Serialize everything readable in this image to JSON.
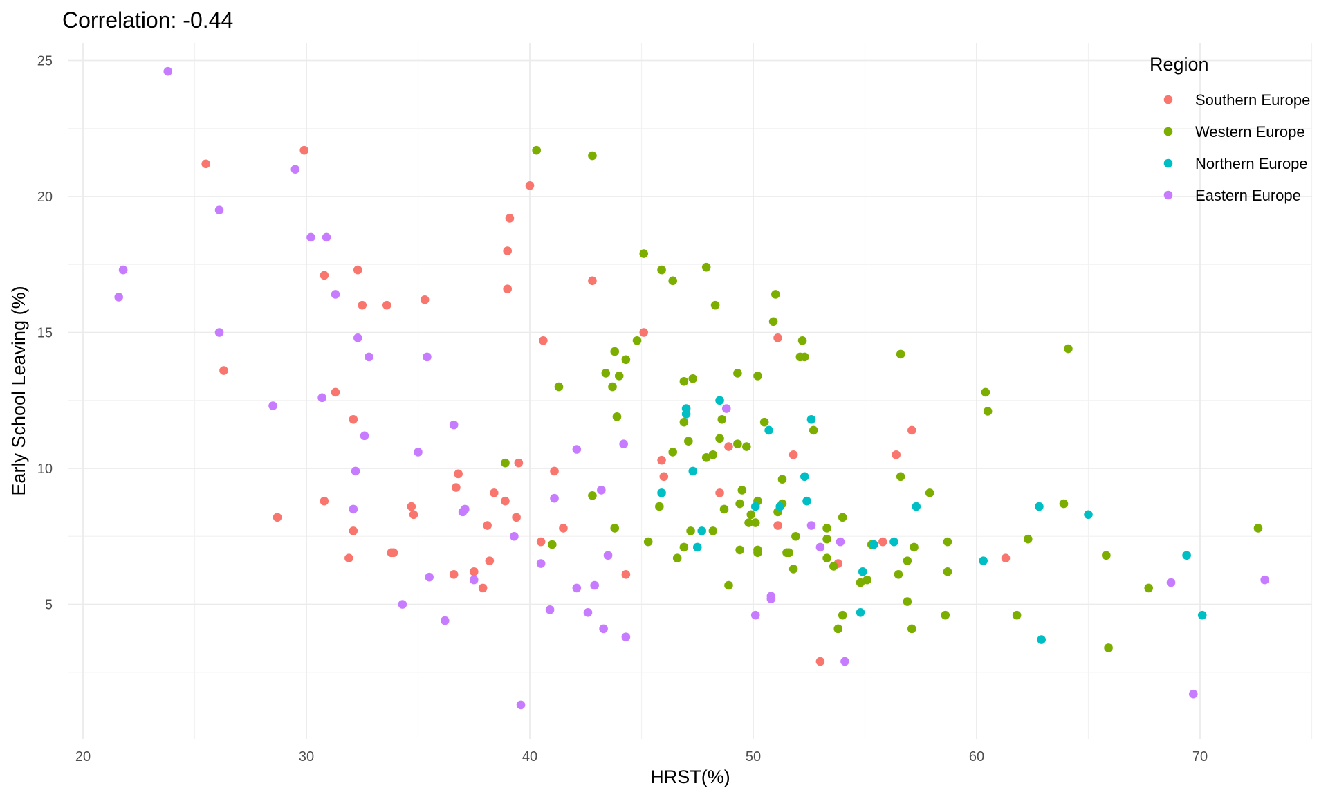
{
  "chart_data": {
    "type": "scatter",
    "title": "Correlation:  -0.44",
    "xlabel": "HRST(%)",
    "ylabel": "Early School Leaving (%)",
    "xlim": [
      18.5,
      75.5
    ],
    "ylim": [
      0.5,
      25.8
    ],
    "x_ticks": [
      20,
      30,
      40,
      50,
      60,
      70
    ],
    "y_ticks": [
      5,
      10,
      15,
      20,
      25
    ],
    "grid": true,
    "legend": {
      "title": "Region",
      "position": "top-right"
    },
    "series": [
      {
        "name": "Southern Europe",
        "color": "#F8766D",
        "points": [
          [
            25.5,
            21.2
          ],
          [
            29.9,
            21.7
          ],
          [
            26.3,
            13.6
          ],
          [
            28.7,
            8.2
          ],
          [
            30.8,
            17.1
          ],
          [
            31.3,
            12.8
          ],
          [
            30.8,
            8.8
          ],
          [
            32.3,
            17.3
          ],
          [
            32.1,
            11.8
          ],
          [
            32.1,
            7.7
          ],
          [
            31.9,
            6.7
          ],
          [
            32.5,
            16.0
          ],
          [
            33.6,
            16.0
          ],
          [
            33.8,
            6.9
          ],
          [
            33.9,
            6.9
          ],
          [
            34.7,
            8.6
          ],
          [
            34.8,
            8.3
          ],
          [
            35.3,
            16.2
          ],
          [
            36.6,
            6.1
          ],
          [
            36.7,
            9.3
          ],
          [
            36.8,
            9.8
          ],
          [
            37.5,
            6.2
          ],
          [
            37.9,
            5.6
          ],
          [
            38.1,
            7.9
          ],
          [
            38.2,
            6.6
          ],
          [
            38.4,
            9.1
          ],
          [
            38.9,
            8.8
          ],
          [
            39.0,
            18.0
          ],
          [
            39.0,
            16.6
          ],
          [
            39.1,
            19.2
          ],
          [
            39.4,
            8.2
          ],
          [
            39.5,
            10.2
          ],
          [
            40.0,
            20.4
          ],
          [
            40.5,
            7.3
          ],
          [
            40.6,
            14.7
          ],
          [
            41.1,
            9.9
          ],
          [
            41.5,
            7.8
          ],
          [
            42.8,
            16.9
          ],
          [
            44.3,
            6.1
          ],
          [
            45.1,
            15.0
          ],
          [
            45.9,
            10.3
          ],
          [
            46.0,
            9.7
          ],
          [
            48.5,
            9.1
          ],
          [
            48.9,
            10.8
          ],
          [
            51.1,
            14.8
          ],
          [
            51.1,
            7.9
          ],
          [
            51.8,
            10.5
          ],
          [
            53.0,
            2.9
          ],
          [
            53.8,
            6.5
          ],
          [
            55.8,
            7.3
          ],
          [
            56.4,
            10.5
          ],
          [
            57.1,
            11.4
          ],
          [
            61.3,
            6.7
          ]
        ]
      },
      {
        "name": "Western Europe",
        "color": "#7CAE00",
        "points": [
          [
            38.9,
            10.2
          ],
          [
            40.3,
            21.7
          ],
          [
            41.0,
            7.2
          ],
          [
            41.3,
            13.0
          ],
          [
            42.8,
            21.5
          ],
          [
            42.8,
            9.0
          ],
          [
            43.4,
            13.5
          ],
          [
            43.7,
            13.0
          ],
          [
            43.8,
            14.3
          ],
          [
            43.8,
            7.8
          ],
          [
            43.9,
            11.9
          ],
          [
            44.0,
            13.4
          ],
          [
            44.3,
            14.0
          ],
          [
            44.8,
            14.7
          ],
          [
            45.1,
            17.9
          ],
          [
            45.3,
            7.3
          ],
          [
            45.8,
            8.6
          ],
          [
            45.9,
            17.3
          ],
          [
            46.4,
            16.9
          ],
          [
            46.4,
            10.6
          ],
          [
            46.6,
            6.7
          ],
          [
            46.9,
            13.2
          ],
          [
            46.9,
            11.7
          ],
          [
            46.9,
            7.1
          ],
          [
            47.1,
            11.0
          ],
          [
            47.2,
            7.7
          ],
          [
            47.3,
            13.3
          ],
          [
            47.9,
            17.4
          ],
          [
            47.9,
            10.4
          ],
          [
            48.2,
            10.5
          ],
          [
            48.2,
            7.7
          ],
          [
            48.3,
            16.0
          ],
          [
            48.5,
            11.1
          ],
          [
            48.6,
            11.8
          ],
          [
            48.7,
            8.5
          ],
          [
            48.9,
            5.7
          ],
          [
            49.3,
            13.5
          ],
          [
            49.3,
            10.9
          ],
          [
            49.4,
            8.7
          ],
          [
            49.4,
            7.0
          ],
          [
            49.5,
            9.2
          ],
          [
            49.7,
            10.8
          ],
          [
            49.8,
            8.0
          ],
          [
            49.9,
            8.3
          ],
          [
            50.1,
            8.0
          ],
          [
            50.2,
            13.4
          ],
          [
            50.2,
            8.8
          ],
          [
            50.2,
            7.0
          ],
          [
            50.2,
            6.9
          ],
          [
            50.5,
            11.7
          ],
          [
            50.9,
            15.4
          ],
          [
            51.0,
            16.4
          ],
          [
            51.1,
            8.4
          ],
          [
            51.3,
            9.6
          ],
          [
            51.3,
            8.7
          ],
          [
            51.5,
            6.9
          ],
          [
            51.6,
            6.9
          ],
          [
            51.8,
            6.3
          ],
          [
            51.9,
            7.5
          ],
          [
            52.1,
            14.1
          ],
          [
            52.2,
            14.7
          ],
          [
            52.3,
            14.1
          ],
          [
            52.7,
            11.4
          ],
          [
            53.3,
            7.8
          ],
          [
            53.3,
            7.4
          ],
          [
            53.3,
            6.7
          ],
          [
            53.6,
            6.4
          ],
          [
            53.8,
            4.1
          ],
          [
            54.0,
            8.2
          ],
          [
            54.0,
            4.6
          ],
          [
            54.8,
            5.8
          ],
          [
            55.1,
            5.9
          ],
          [
            55.3,
            7.2
          ],
          [
            56.5,
            6.1
          ],
          [
            56.6,
            14.2
          ],
          [
            56.6,
            9.7
          ],
          [
            56.9,
            6.6
          ],
          [
            56.9,
            5.1
          ],
          [
            57.1,
            4.1
          ],
          [
            57.2,
            7.1
          ],
          [
            57.9,
            9.1
          ],
          [
            58.6,
            4.6
          ],
          [
            58.7,
            7.3
          ],
          [
            58.7,
            6.2
          ],
          [
            60.4,
            12.8
          ],
          [
            60.5,
            12.1
          ],
          [
            61.8,
            4.6
          ],
          [
            62.3,
            7.4
          ],
          [
            63.9,
            8.7
          ],
          [
            64.1,
            14.4
          ],
          [
            65.8,
            6.8
          ],
          [
            65.9,
            3.4
          ],
          [
            67.7,
            5.6
          ],
          [
            72.6,
            7.8
          ]
        ]
      },
      {
        "name": "Northern Europe",
        "color": "#00BFC4",
        "points": [
          [
            45.9,
            9.1
          ],
          [
            47.0,
            12.2
          ],
          [
            47.0,
            12.0
          ],
          [
            47.3,
            9.9
          ],
          [
            47.5,
            7.1
          ],
          [
            47.7,
            7.7
          ],
          [
            48.5,
            12.5
          ],
          [
            50.1,
            8.6
          ],
          [
            50.7,
            11.4
          ],
          [
            51.2,
            8.6
          ],
          [
            52.3,
            9.7
          ],
          [
            52.4,
            8.8
          ],
          [
            52.6,
            11.8
          ],
          [
            54.8,
            4.7
          ],
          [
            54.9,
            6.2
          ],
          [
            55.4,
            7.2
          ],
          [
            56.3,
            7.3
          ],
          [
            57.3,
            8.6
          ],
          [
            60.3,
            6.6
          ],
          [
            62.8,
            8.6
          ],
          [
            62.9,
            3.7
          ],
          [
            65.0,
            8.3
          ],
          [
            69.4,
            6.8
          ],
          [
            70.1,
            4.6
          ]
        ]
      },
      {
        "name": "Eastern Europe",
        "color": "#C77CFF",
        "points": [
          [
            21.6,
            16.3
          ],
          [
            21.8,
            17.3
          ],
          [
            23.8,
            24.6
          ],
          [
            26.1,
            19.5
          ],
          [
            26.1,
            15.0
          ],
          [
            28.5,
            12.3
          ],
          [
            29.5,
            21.0
          ],
          [
            30.2,
            18.5
          ],
          [
            30.7,
            12.6
          ],
          [
            30.9,
            18.5
          ],
          [
            31.3,
            16.4
          ],
          [
            32.1,
            8.5
          ],
          [
            32.2,
            9.9
          ],
          [
            32.3,
            14.8
          ],
          [
            32.6,
            11.2
          ],
          [
            32.8,
            14.1
          ],
          [
            34.3,
            5.0
          ],
          [
            35.0,
            10.6
          ],
          [
            35.4,
            14.1
          ],
          [
            35.5,
            6.0
          ],
          [
            36.2,
            4.4
          ],
          [
            36.6,
            11.6
          ],
          [
            37.0,
            8.4
          ],
          [
            37.1,
            8.5
          ],
          [
            37.5,
            5.9
          ],
          [
            39.3,
            7.5
          ],
          [
            39.6,
            1.3
          ],
          [
            40.5,
            6.5
          ],
          [
            40.9,
            4.8
          ],
          [
            41.1,
            8.9
          ],
          [
            42.1,
            10.7
          ],
          [
            42.1,
            5.6
          ],
          [
            42.6,
            4.7
          ],
          [
            42.9,
            5.7
          ],
          [
            43.2,
            9.2
          ],
          [
            43.3,
            4.1
          ],
          [
            43.5,
            6.8
          ],
          [
            44.2,
            10.9
          ],
          [
            44.3,
            3.8
          ],
          [
            48.8,
            12.2
          ],
          [
            50.1,
            4.6
          ],
          [
            50.8,
            5.3
          ],
          [
            50.8,
            5.2
          ],
          [
            52.6,
            7.9
          ],
          [
            53.0,
            7.1
          ],
          [
            53.9,
            7.3
          ],
          [
            54.1,
            2.9
          ],
          [
            68.7,
            5.8
          ],
          [
            69.7,
            1.7
          ],
          [
            72.9,
            5.9
          ]
        ]
      }
    ]
  }
}
